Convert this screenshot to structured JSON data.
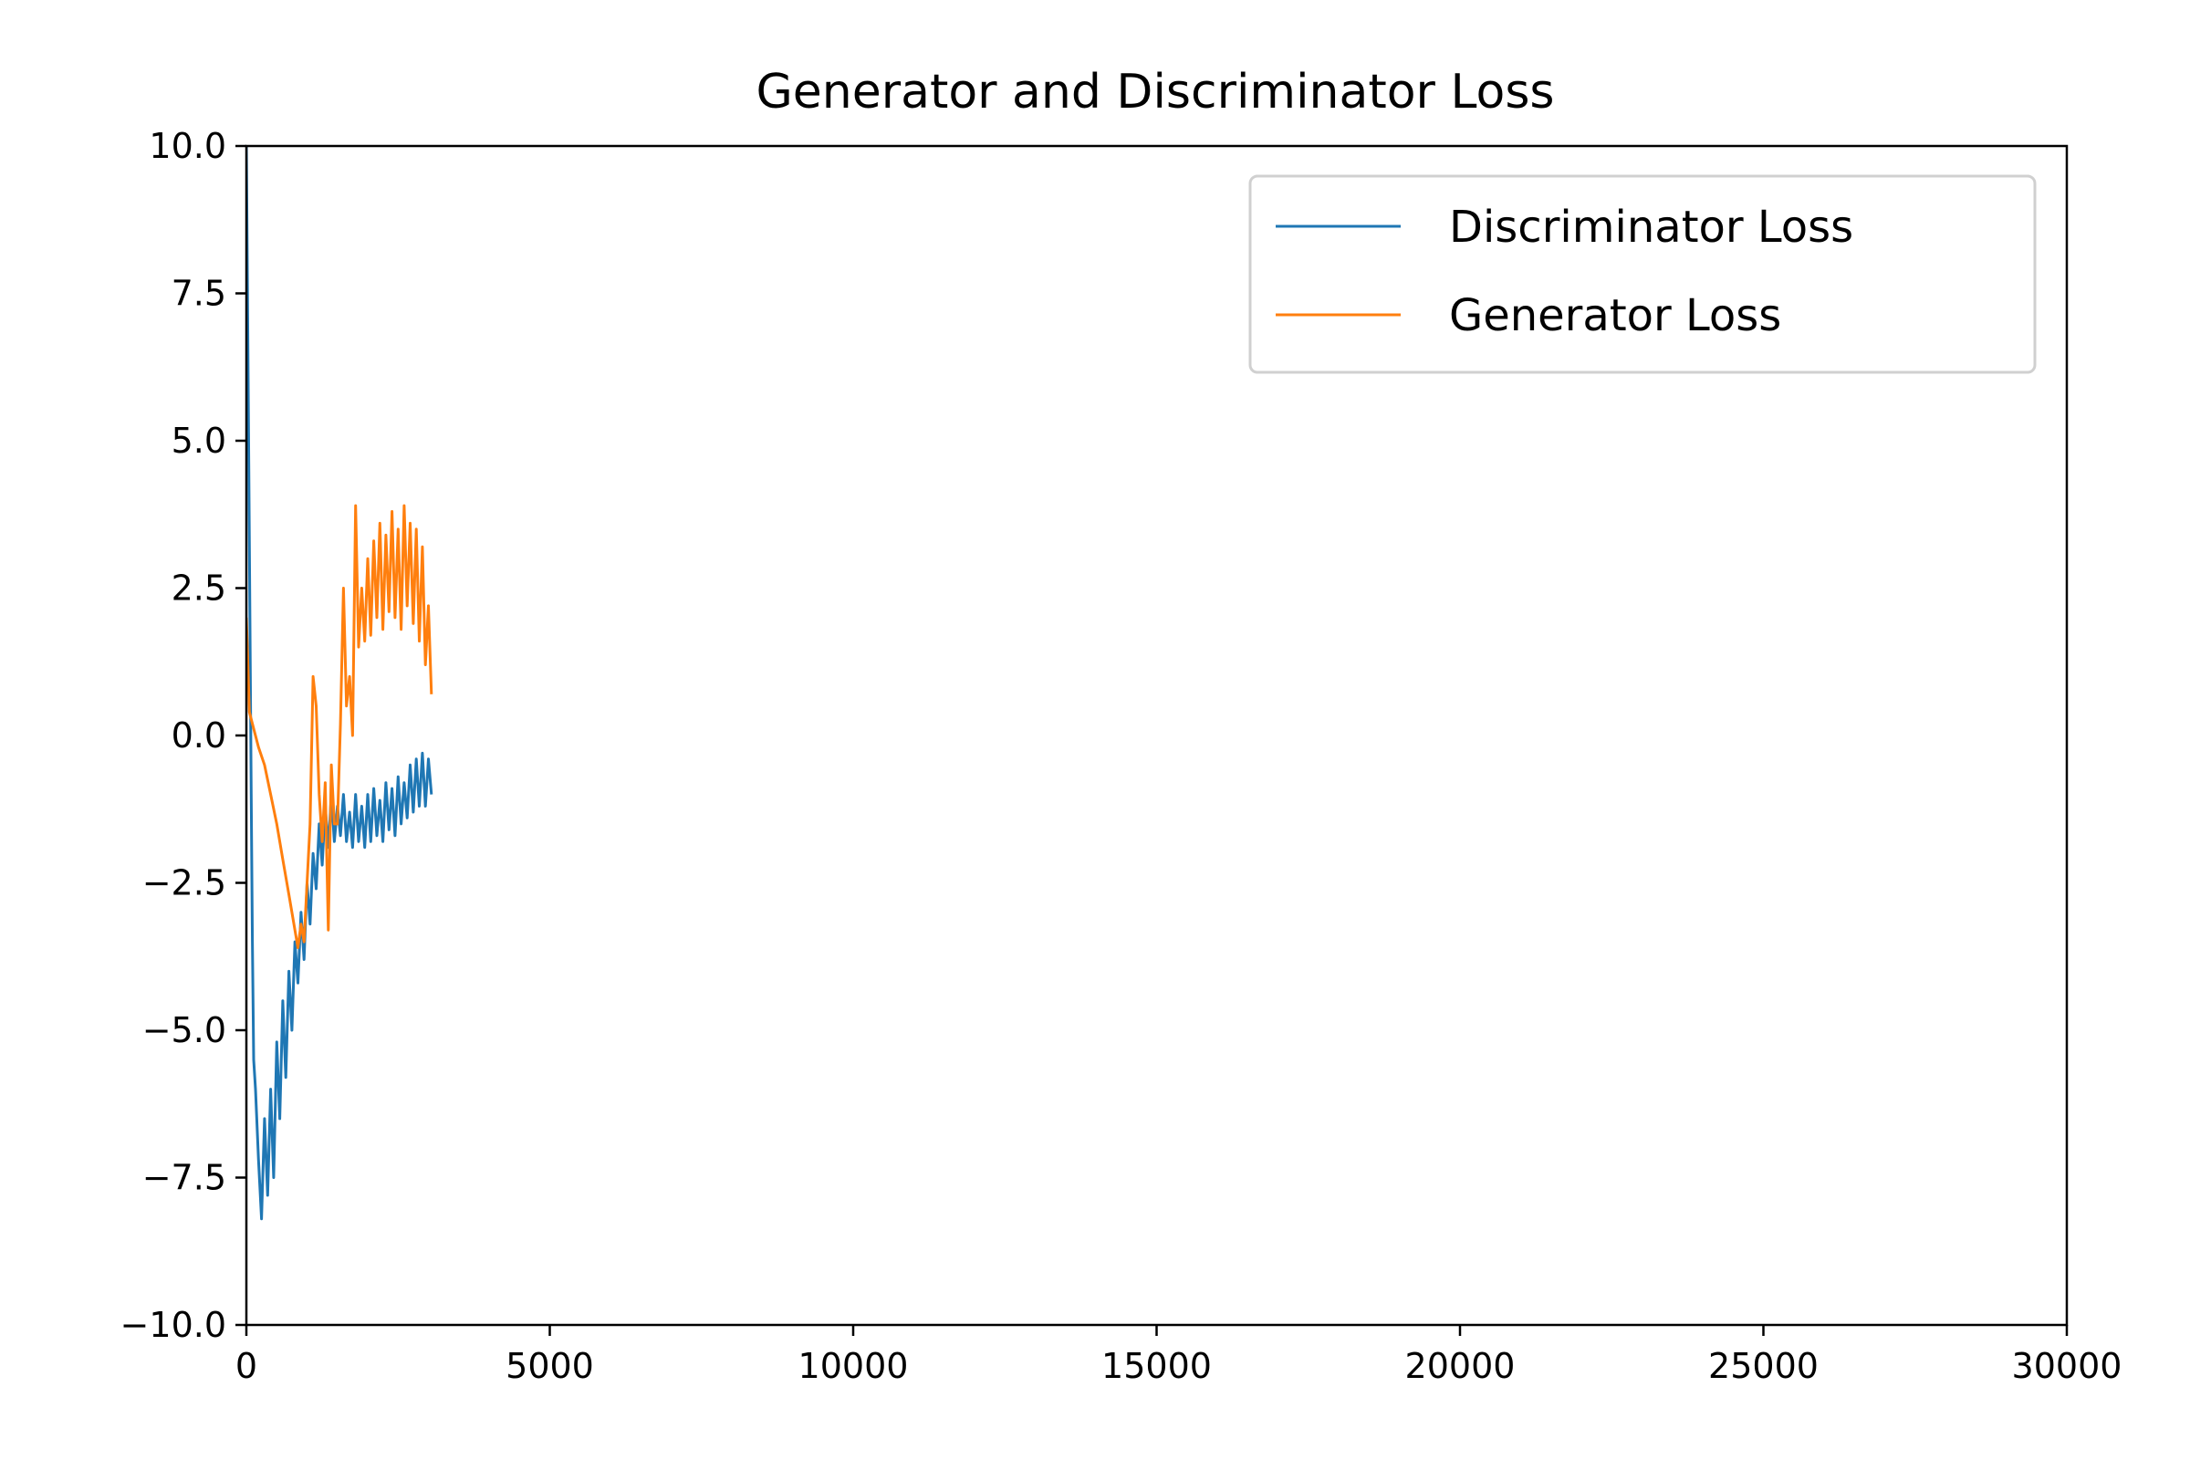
{
  "chart_data": {
    "type": "line",
    "title": "Generator and Discriminator Loss",
    "xlabel": "",
    "ylabel": "",
    "xlim": [
      0,
      30000
    ],
    "ylim": [
      -10,
      10
    ],
    "xticks": [
      0,
      5000,
      10000,
      15000,
      20000,
      25000,
      30000
    ],
    "xtick_labels": [
      "0",
      "5000",
      "10000",
      "15000",
      "20000",
      "25000",
      "30000"
    ],
    "yticks": [
      -10,
      -7.5,
      -5,
      -2.5,
      0,
      2.5,
      5,
      7.5,
      10
    ],
    "ytick_labels": [
      "−10.0",
      "−7.5",
      "−5.0",
      "−2.5",
      "0.0",
      "2.5",
      "5.0",
      "7.5",
      "10.0"
    ],
    "grid": false,
    "legend_position": "top-right",
    "series": [
      {
        "name": "Discriminator Loss",
        "color": "#1f77b4",
        "x": [
          0,
          40,
          80,
          100,
          120,
          150,
          200,
          250,
          300,
          350,
          400,
          450,
          500,
          550,
          600,
          650,
          700,
          750,
          800,
          850,
          900,
          950,
          1000,
          1050,
          1100,
          1150,
          1200,
          1250,
          1300,
          1350,
          1400,
          1450,
          1500,
          1550,
          1600,
          1650,
          1700,
          1750,
          1800,
          1850,
          1900,
          1950,
          2000,
          2050,
          2100,
          2150,
          2200,
          2250,
          2300,
          2350,
          2400,
          2450,
          2500,
          2550,
          2600,
          2650,
          2700,
          2750,
          2800,
          2850,
          2900,
          2950,
          3000,
          3050
        ],
        "y": [
          10,
          4.5,
          -1.0,
          -3.5,
          -5.5,
          -6.0,
          -7.2,
          -8.2,
          -6.5,
          -7.8,
          -6.0,
          -7.5,
          -5.2,
          -6.5,
          -4.5,
          -5.8,
          -4.0,
          -5.0,
          -3.5,
          -4.2,
          -3.0,
          -3.8,
          -2.5,
          -3.2,
          -2.0,
          -2.6,
          -1.5,
          -2.2,
          -1.2,
          -1.9,
          -1.0,
          -1.8,
          -1.2,
          -1.7,
          -1.0,
          -1.8,
          -1.3,
          -1.9,
          -1.0,
          -1.8,
          -1.2,
          -1.9,
          -1.0,
          -1.8,
          -0.9,
          -1.7,
          -1.1,
          -1.8,
          -0.8,
          -1.6,
          -0.9,
          -1.7,
          -0.7,
          -1.5,
          -0.8,
          -1.4,
          -0.5,
          -1.3,
          -0.4,
          -1.2,
          -0.3,
          -1.2,
          -0.4,
          -1.0
        ]
      },
      {
        "name": "Generator Loss",
        "color": "#ff7f0e",
        "x": [
          0,
          50,
          100,
          200,
          300,
          400,
          500,
          600,
          700,
          800,
          850,
          900,
          950,
          1000,
          1050,
          1100,
          1150,
          1200,
          1250,
          1300,
          1350,
          1400,
          1450,
          1500,
          1550,
          1600,
          1650,
          1700,
          1750,
          1800,
          1850,
          1900,
          1950,
          2000,
          2050,
          2100,
          2150,
          2200,
          2250,
          2300,
          2350,
          2400,
          2450,
          2500,
          2550,
          2600,
          2650,
          2700,
          2750,
          2800,
          2850,
          2900,
          2950,
          3000,
          3050
        ],
        "y": [
          2.0,
          0.4,
          0.2,
          -0.2,
          -0.5,
          -1.0,
          -1.5,
          -2.1,
          -2.7,
          -3.3,
          -3.6,
          -3.2,
          -3.5,
          -2.5,
          -1.5,
          1.0,
          0.5,
          -1.0,
          -1.8,
          -0.8,
          -3.3,
          -0.5,
          -1.5,
          -1.5,
          0.2,
          2.5,
          0.5,
          1.0,
          0.0,
          3.9,
          1.5,
          2.5,
          1.6,
          3.0,
          1.7,
          3.3,
          2.0,
          3.6,
          1.8,
          3.4,
          2.1,
          3.8,
          2.0,
          3.5,
          1.8,
          3.9,
          2.2,
          3.6,
          1.9,
          3.5,
          1.6,
          3.2,
          1.2,
          2.2,
          0.7
        ]
      }
    ]
  }
}
